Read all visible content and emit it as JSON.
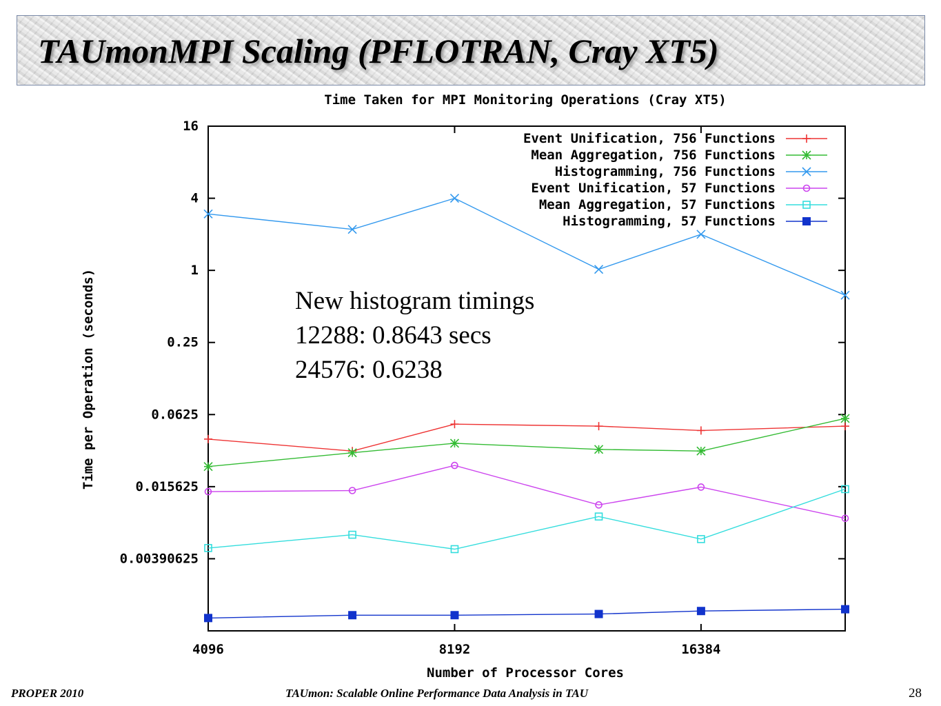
{
  "slide": {
    "title": "TAUmonMPI Scaling (PFLOTRAN, Cray XT5)",
    "footer_left": "PROPER 2010",
    "footer_center": "TAUmon: Scalable Online Performance Data Analysis in TAU",
    "page_number": "28"
  },
  "annotation": {
    "lines": [
      "New histogram timings",
      "12288: 0.8643 secs",
      "24576: 0.6238"
    ]
  },
  "chart_data": {
    "type": "line",
    "title": "Time Taken for MPI Monitoring Operations (Cray XT5)",
    "xlabel": "Number of Processor Cores",
    "ylabel": "Time per Operation (seconds)",
    "x_scale": "log2",
    "y_scale": "log",
    "xlim": [
      4096,
      24576
    ],
    "ylim": [
      0.0009765625,
      16
    ],
    "x_ticks": [
      4096,
      8192,
      16384
    ],
    "x_tick_labels": [
      "4096",
      "8192",
      "16384"
    ],
    "y_ticks": [
      0.00390625,
      0.015625,
      0.0625,
      0.25,
      1,
      4,
      16
    ],
    "y_tick_labels": [
      "0.00390625",
      "0.015625",
      "0.0625",
      "0.25",
      "1",
      "4",
      "16"
    ],
    "x": [
      4096,
      6144,
      8192,
      12288,
      16384,
      24576
    ],
    "legend_position": "top-right",
    "grid": false,
    "series": [
      {
        "name": "Event Unification, 756 Functions",
        "color": "#ee3333",
        "marker": "plus",
        "values": [
          0.039,
          0.031,
          0.052,
          0.05,
          0.046,
          0.05
        ]
      },
      {
        "name": "Mean Aggregation, 756 Functions",
        "color": "#33bb33",
        "marker": "star",
        "values": [
          0.023,
          0.03,
          0.036,
          0.032,
          0.031,
          0.058
        ]
      },
      {
        "name": "Histogramming, 756 Functions",
        "color": "#3399ee",
        "marker": "x",
        "values": [
          2.96,
          2.2,
          4.0,
          1.02,
          2.0,
          0.62
        ]
      },
      {
        "name": "Event Unification, 57 Functions",
        "color": "#cc44ee",
        "marker": "circle",
        "values": [
          0.0142,
          0.0145,
          0.0235,
          0.011,
          0.0155,
          0.0085
        ]
      },
      {
        "name": "Mean Aggregation, 57 Functions",
        "color": "#33dddd",
        "marker": "square-open",
        "values": [
          0.0048,
          0.0062,
          0.0047,
          0.0088,
          0.0057,
          0.0149
        ]
      },
      {
        "name": "Histogramming, 57 Functions",
        "color": "#1133cc",
        "marker": "square-filled",
        "values": [
          0.00125,
          0.00132,
          0.00132,
          0.00135,
          0.00143,
          0.00148
        ]
      }
    ]
  }
}
